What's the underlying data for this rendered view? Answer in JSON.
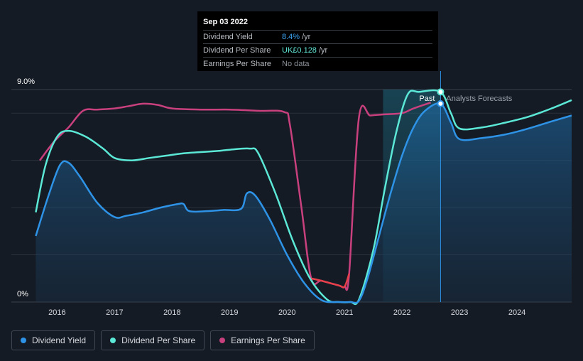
{
  "tooltip": {
    "date": "Sep 03 2022",
    "rows": [
      {
        "label": "Dividend Yield",
        "value": "8.4%",
        "unit": "/yr"
      },
      {
        "label": "Dividend Per Share",
        "value": "UK£0.128",
        "unit": "/yr"
      },
      {
        "label": "Earnings Per Share",
        "value": "No data",
        "unit": ""
      }
    ]
  },
  "legend": [
    {
      "label": "Dividend Yield",
      "color": "#2e93e6"
    },
    {
      "label": "Dividend Per Share",
      "color": "#5ce8d6"
    },
    {
      "label": "Earnings Per Share",
      "color": "#c8407e"
    }
  ],
  "chart_data": {
    "type": "line",
    "y_tick_labels": [
      "9.0%",
      "0%"
    ],
    "ylim": [
      0,
      9
    ],
    "xlim": [
      2015.6,
      2024.95
    ],
    "x_ticks": [
      2016,
      2017,
      2018,
      2019,
      2020,
      2021,
      2022,
      2023,
      2024
    ],
    "past_label": "Past",
    "forecast_label": "Analysts Forecasts",
    "forecast_start": 2022.67,
    "shaded_region_start": 2021.67,
    "colors": {
      "yield": "#2e93e6",
      "dps": "#5ce8d6",
      "eps": "#c8407e",
      "eps_low": "#e8404a"
    },
    "series": [
      {
        "name": "Dividend Yield",
        "x": [
          2015.63,
          2015.85,
          2016.05,
          2016.2,
          2016.4,
          2016.7,
          2017.0,
          2017.2,
          2017.5,
          2017.8,
          2018.1,
          2018.2,
          2018.3,
          2018.6,
          2018.9,
          2019.2,
          2019.3,
          2019.45,
          2019.7,
          2020.0,
          2020.3,
          2020.6,
          2020.9,
          2021.1,
          2021.25,
          2021.4,
          2021.6,
          2021.8,
          2022.0,
          2022.2,
          2022.4,
          2022.67,
          2022.85,
          2023.0,
          2023.4,
          2023.8,
          2024.2,
          2024.6,
          2024.95
        ],
        "values": [
          2.8,
          4.5,
          5.8,
          5.9,
          5.3,
          4.2,
          3.6,
          3.65,
          3.8,
          4.0,
          4.15,
          4.15,
          3.85,
          3.85,
          3.9,
          3.95,
          4.6,
          4.5,
          3.5,
          2.0,
          0.8,
          0.08,
          0.0,
          0.0,
          0.05,
          1.0,
          2.8,
          4.6,
          6.2,
          7.4,
          8.1,
          8.4,
          7.6,
          6.9,
          6.95,
          7.1,
          7.35,
          7.65,
          7.9
        ]
      },
      {
        "name": "Dividend Per Share",
        "x": [
          2015.63,
          2015.8,
          2016.0,
          2016.2,
          2016.5,
          2016.8,
          2017.0,
          2017.3,
          2017.6,
          2017.9,
          2018.2,
          2018.5,
          2018.8,
          2019.0,
          2019.35,
          2019.5,
          2019.8,
          2020.1,
          2020.4,
          2020.7,
          2020.9,
          2021.1,
          2021.25,
          2021.5,
          2021.7,
          2021.9,
          2022.1,
          2022.3,
          2022.67,
          2022.85,
          2023.0,
          2023.4,
          2023.8,
          2024.2,
          2024.6,
          2024.95
        ],
        "values": [
          3.8,
          5.8,
          7.0,
          7.25,
          7.0,
          6.5,
          6.1,
          6.0,
          6.1,
          6.2,
          6.3,
          6.35,
          6.4,
          6.45,
          6.5,
          6.3,
          4.6,
          2.6,
          1.0,
          0.1,
          0.0,
          0.0,
          0.1,
          2.2,
          4.8,
          7.2,
          8.8,
          8.9,
          8.9,
          8.0,
          7.35,
          7.4,
          7.6,
          7.85,
          8.2,
          8.55
        ]
      },
      {
        "name": "Earnings Per Share",
        "x": [
          2015.7,
          2015.95,
          2016.2,
          2016.45,
          2016.7,
          2017.0,
          2017.25,
          2017.5,
          2017.75,
          2018.0,
          2018.5,
          2019.0,
          2019.5,
          2019.95,
          2020.05,
          2020.25,
          2020.42,
          2020.6,
          2020.9,
          2021.0,
          2021.08,
          2021.25,
          2021.45,
          2021.7,
          2022.0,
          2022.2,
          2022.5
        ],
        "values": [
          6.0,
          6.8,
          7.4,
          8.1,
          8.15,
          8.2,
          8.3,
          8.4,
          8.35,
          8.2,
          8.15,
          8.15,
          8.1,
          8.05,
          7.5,
          4.0,
          1.0,
          0.9,
          0.7,
          0.65,
          1.2,
          7.8,
          7.9,
          7.95,
          8.0,
          8.2,
          8.45
        ]
      }
    ]
  }
}
